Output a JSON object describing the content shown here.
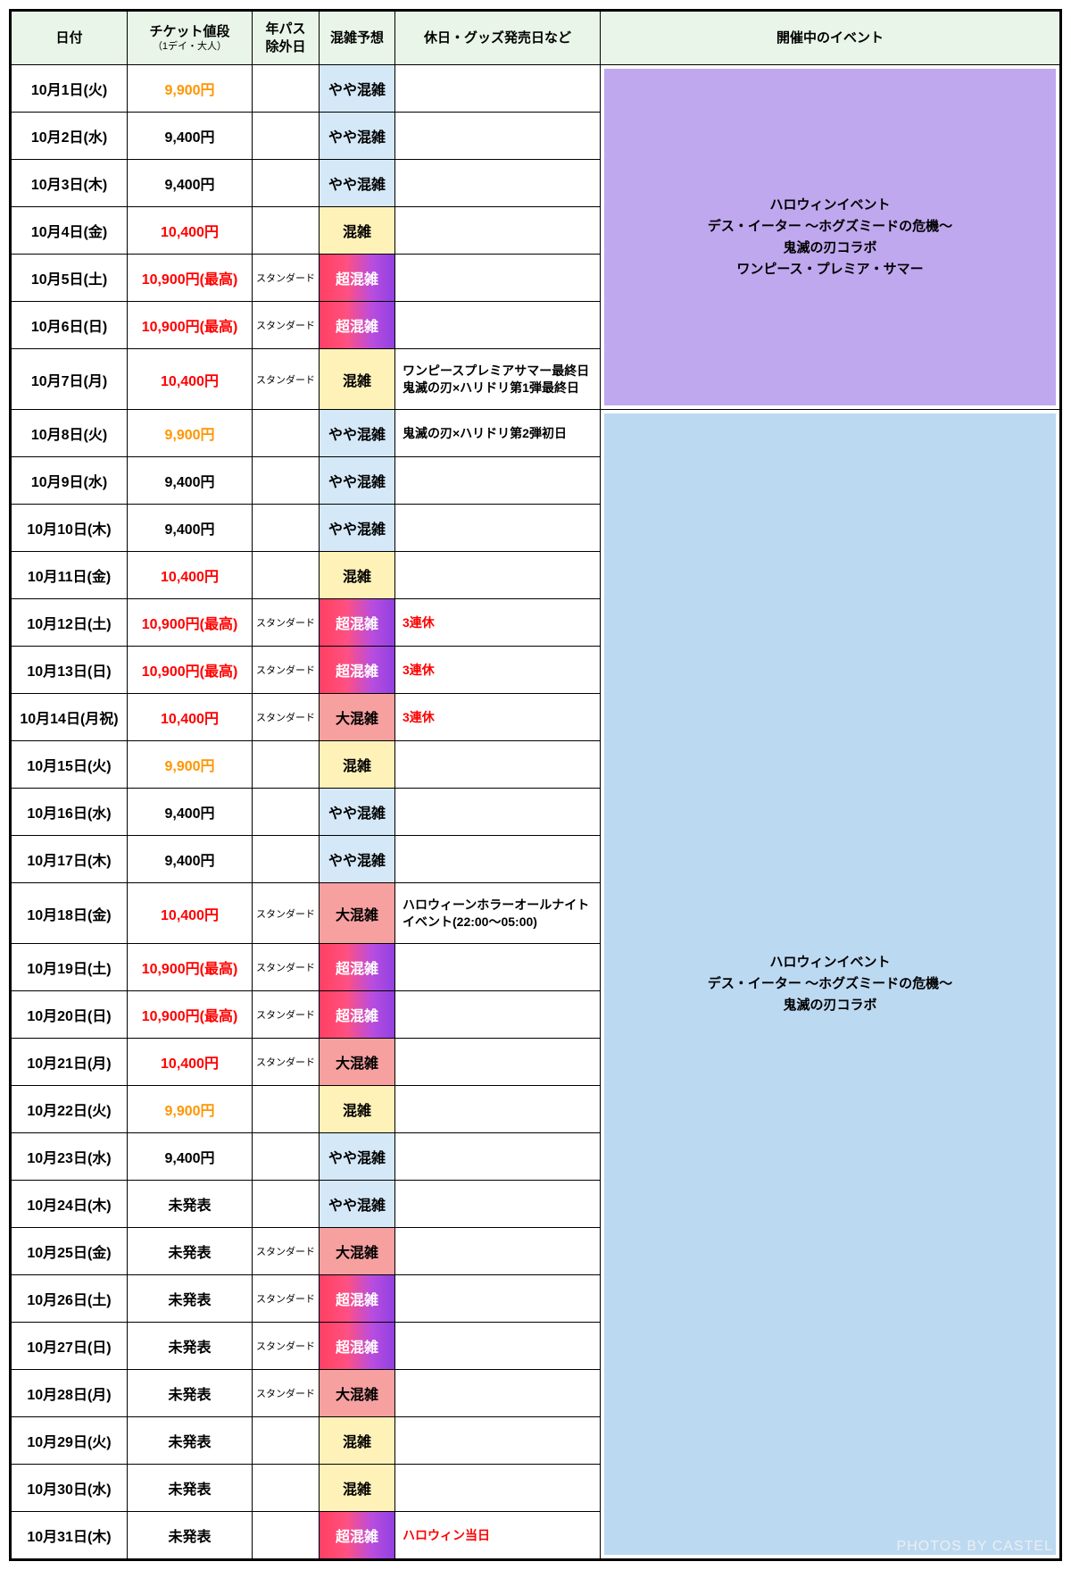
{
  "headers": {
    "date": "日付",
    "price": "チケット値段",
    "price_sub": "（1デイ・大人）",
    "pass": "年パス\n除外日",
    "crowd": "混雑予想",
    "notes": "休日・グッズ発売日など",
    "event": "開催中のイベント"
  },
  "colors": {
    "header_bg": "#e8f5e8",
    "price_orange": "#ff9500",
    "price_red": "#ff0000",
    "crowd_yaya": "#d4e8f7",
    "crowd_kon": "#fff2b8",
    "crowd_dai": "#f7a0a0",
    "crowd_cho_from": "#ff4060",
    "crowd_cho_to": "#9040e0",
    "event_purple": "#c0a8ef",
    "event_blue": "#bcd9f2",
    "notes_red": "#ff0000"
  },
  "crowd_labels": {
    "yaya": "やや混雑",
    "kon": "混雑",
    "dai": "大混雑",
    "cho": "超混雑"
  },
  "pass_label": "スタンダード",
  "events": {
    "purple": "ハロウィンイベント\nデス・イーター 〜ホグズミードの危機〜\n鬼滅の刃コラボ\nワンピース・プレミア・サマー",
    "blue": "ハロウィンイベント\nデス・イーター 〜ホグズミードの危機〜\n鬼滅の刃コラボ"
  },
  "rows": [
    {
      "date": "10月1日(火)",
      "price": "9,900円",
      "price_cls": "orange",
      "pass": "",
      "crowd": "yaya",
      "notes": "",
      "notes_cls": ""
    },
    {
      "date": "10月2日(水)",
      "price": "9,400円",
      "price_cls": "",
      "pass": "",
      "crowd": "yaya",
      "notes": "",
      "notes_cls": ""
    },
    {
      "date": "10月3日(木)",
      "price": "9,400円",
      "price_cls": "",
      "pass": "",
      "crowd": "yaya",
      "notes": "",
      "notes_cls": ""
    },
    {
      "date": "10月4日(金)",
      "price": "10,400円",
      "price_cls": "red",
      "pass": "",
      "crowd": "kon",
      "notes": "",
      "notes_cls": ""
    },
    {
      "date": "10月5日(土)",
      "price": "10,900円(最高)",
      "price_cls": "red",
      "pass": "スタンダード",
      "crowd": "cho",
      "notes": "",
      "notes_cls": ""
    },
    {
      "date": "10月6日(日)",
      "price": "10,900円(最高)",
      "price_cls": "red",
      "pass": "スタンダード",
      "crowd": "cho",
      "notes": "",
      "notes_cls": ""
    },
    {
      "date": "10月7日(月)",
      "price": "10,400円",
      "price_cls": "red",
      "pass": "スタンダード",
      "crowd": "kon",
      "notes": "ワンピースプレミアサマー最終日\n鬼滅の刃×ハリドリ第1弾最終日",
      "notes_cls": "",
      "tall": true
    },
    {
      "date": "10月8日(火)",
      "price": "9,900円",
      "price_cls": "orange",
      "pass": "",
      "crowd": "yaya",
      "notes": "鬼滅の刃×ハリドリ第2弾初日",
      "notes_cls": ""
    },
    {
      "date": "10月9日(水)",
      "price": "9,400円",
      "price_cls": "",
      "pass": "",
      "crowd": "yaya",
      "notes": "",
      "notes_cls": ""
    },
    {
      "date": "10月10日(木)",
      "price": "9,400円",
      "price_cls": "",
      "pass": "",
      "crowd": "yaya",
      "notes": "",
      "notes_cls": ""
    },
    {
      "date": "10月11日(金)",
      "price": "10,400円",
      "price_cls": "red",
      "pass": "",
      "crowd": "kon",
      "notes": "",
      "notes_cls": ""
    },
    {
      "date": "10月12日(土)",
      "price": "10,900円(最高)",
      "price_cls": "red",
      "pass": "スタンダード",
      "crowd": "cho",
      "notes": "3連休",
      "notes_cls": "red"
    },
    {
      "date": "10月13日(日)",
      "price": "10,900円(最高)",
      "price_cls": "red",
      "pass": "スタンダード",
      "crowd": "cho",
      "notes": "3連休",
      "notes_cls": "red"
    },
    {
      "date": "10月14日(月祝)",
      "price": "10,400円",
      "price_cls": "red",
      "pass": "スタンダード",
      "crowd": "dai",
      "notes": "3連休",
      "notes_cls": "red"
    },
    {
      "date": "10月15日(火)",
      "price": "9,900円",
      "price_cls": "orange",
      "pass": "",
      "crowd": "kon",
      "notes": "",
      "notes_cls": ""
    },
    {
      "date": "10月16日(水)",
      "price": "9,400円",
      "price_cls": "",
      "pass": "",
      "crowd": "yaya",
      "notes": "",
      "notes_cls": ""
    },
    {
      "date": "10月17日(木)",
      "price": "9,400円",
      "price_cls": "",
      "pass": "",
      "crowd": "yaya",
      "notes": "",
      "notes_cls": ""
    },
    {
      "date": "10月18日(金)",
      "price": "10,400円",
      "price_cls": "red",
      "pass": "スタンダード",
      "crowd": "dai",
      "notes": "ハロウィーンホラーオールナイトイベント(22:00〜05:00)",
      "notes_cls": "",
      "tall": true
    },
    {
      "date": "10月19日(土)",
      "price": "10,900円(最高)",
      "price_cls": "red",
      "pass": "スタンダード",
      "crowd": "cho",
      "notes": "",
      "notes_cls": ""
    },
    {
      "date": "10月20日(日)",
      "price": "10,900円(最高)",
      "price_cls": "red",
      "pass": "スタンダード",
      "crowd": "cho",
      "notes": "",
      "notes_cls": ""
    },
    {
      "date": "10月21日(月)",
      "price": "10,400円",
      "price_cls": "red",
      "pass": "スタンダード",
      "crowd": "dai",
      "notes": "",
      "notes_cls": ""
    },
    {
      "date": "10月22日(火)",
      "price": "9,900円",
      "price_cls": "orange",
      "pass": "",
      "crowd": "kon",
      "notes": "",
      "notes_cls": ""
    },
    {
      "date": "10月23日(水)",
      "price": "9,400円",
      "price_cls": "",
      "pass": "",
      "crowd": "yaya",
      "notes": "",
      "notes_cls": ""
    },
    {
      "date": "10月24日(木)",
      "price": "未発表",
      "price_cls": "",
      "pass": "",
      "crowd": "yaya",
      "notes": "",
      "notes_cls": ""
    },
    {
      "date": "10月25日(金)",
      "price": "未発表",
      "price_cls": "",
      "pass": "スタンダード",
      "crowd": "dai",
      "notes": "",
      "notes_cls": ""
    },
    {
      "date": "10月26日(土)",
      "price": "未発表",
      "price_cls": "",
      "pass": "スタンダード",
      "crowd": "cho",
      "notes": "",
      "notes_cls": ""
    },
    {
      "date": "10月27日(日)",
      "price": "未発表",
      "price_cls": "",
      "pass": "スタンダード",
      "crowd": "cho",
      "notes": "",
      "notes_cls": ""
    },
    {
      "date": "10月28日(月)",
      "price": "未発表",
      "price_cls": "",
      "pass": "スタンダード",
      "crowd": "dai",
      "notes": "",
      "notes_cls": ""
    },
    {
      "date": "10月29日(火)",
      "price": "未発表",
      "price_cls": "",
      "pass": "",
      "crowd": "kon",
      "notes": "",
      "notes_cls": ""
    },
    {
      "date": "10月30日(水)",
      "price": "未発表",
      "price_cls": "",
      "pass": "",
      "crowd": "kon",
      "notes": "",
      "notes_cls": ""
    },
    {
      "date": "10月31日(木)",
      "price": "未発表",
      "price_cls": "",
      "pass": "",
      "crowd": "cho",
      "notes": "ハロウィン当日",
      "notes_cls": "red"
    }
  ],
  "event_spans": [
    {
      "start": 0,
      "span": 7,
      "box": "purple"
    },
    {
      "start": 7,
      "span": 24,
      "box": "blue"
    }
  ],
  "watermark": "PHOTOS BY CASTEL"
}
